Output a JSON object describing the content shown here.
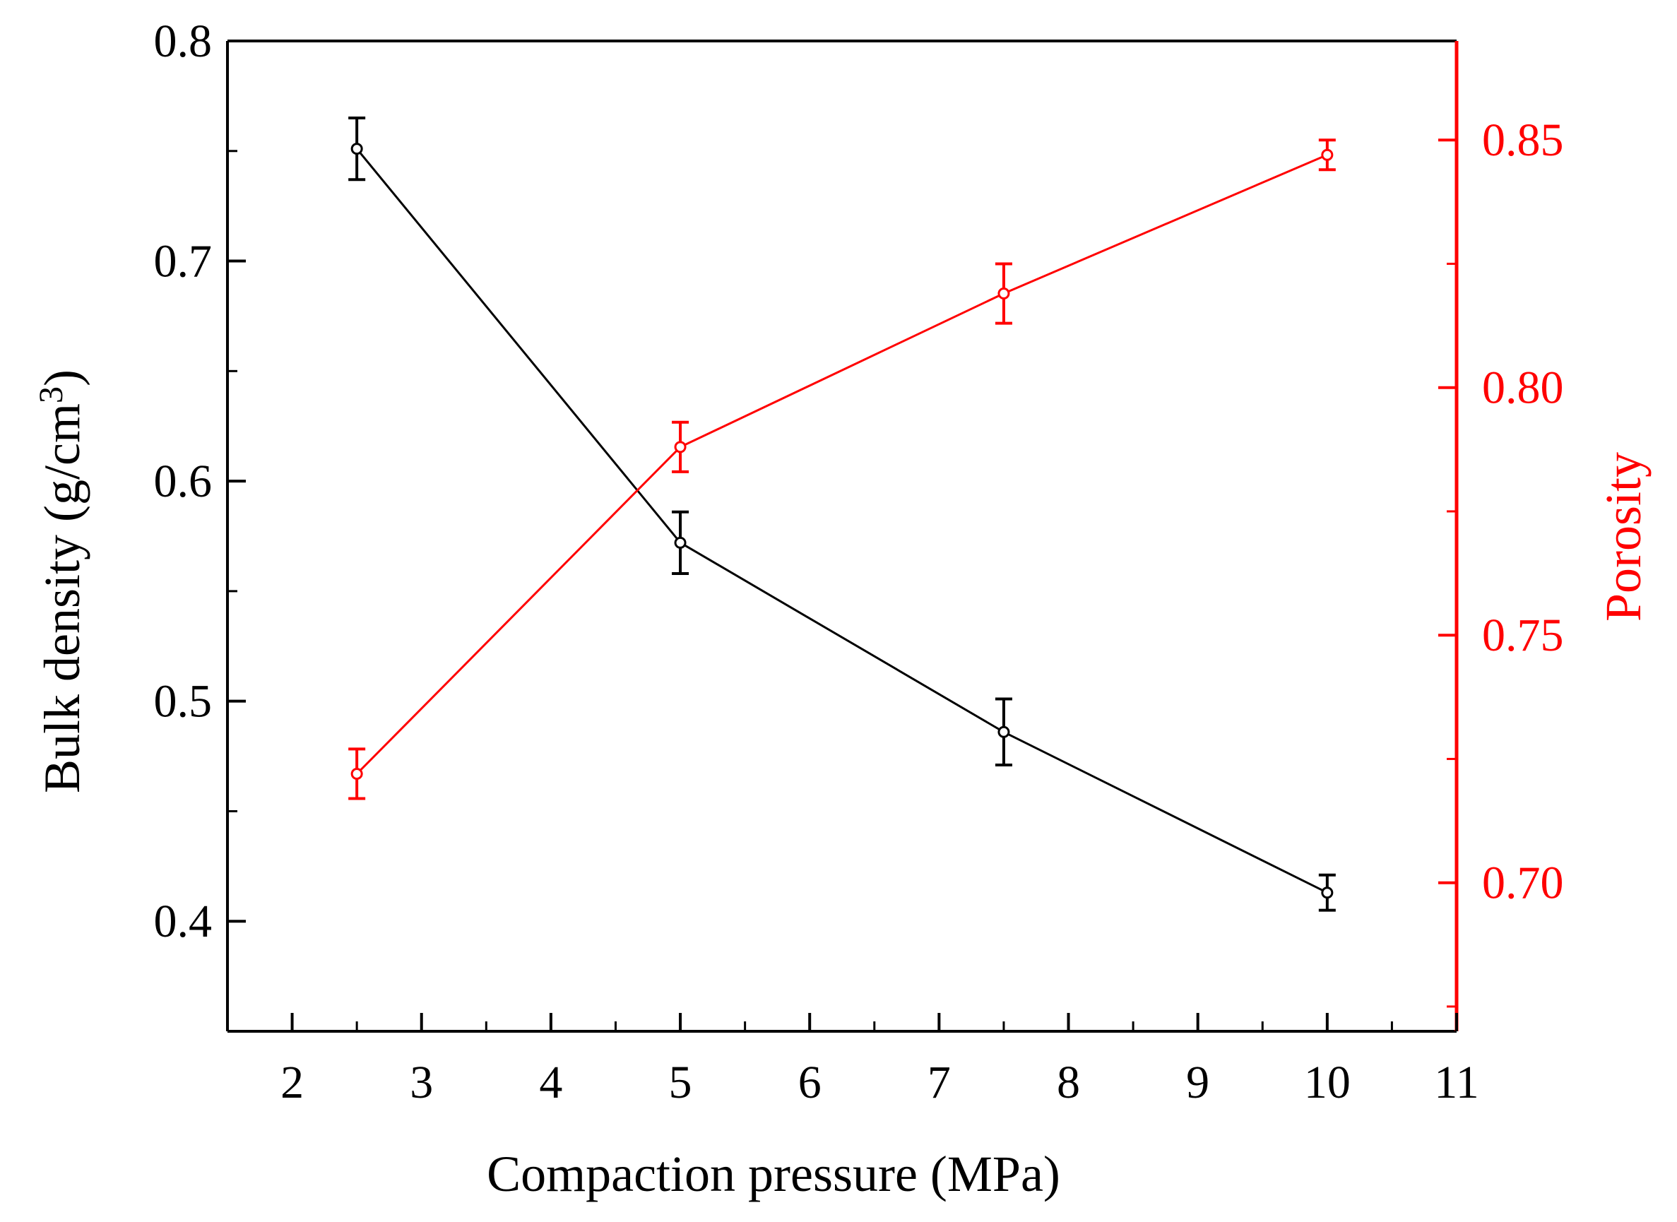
{
  "chart_data": {
    "type": "line",
    "title": "",
    "xlabel": "Compaction pressure (MPa)",
    "ylabel_left": {
      "text": "Bulk density (g/cm",
      "superscript": "3",
      "suffix": ")"
    },
    "ylabel_right": "Porosity",
    "xlim": [
      1.5,
      11
    ],
    "ylim_left": [
      0.35,
      0.8
    ],
    "ylim_right": [
      0.67,
      0.87
    ],
    "x_ticks": [
      2,
      3,
      4,
      5,
      6,
      7,
      8,
      9,
      10,
      11
    ],
    "x_tick_labels": [
      "2",
      "3",
      "4",
      "5",
      "6",
      "7",
      "8",
      "9",
      "10",
      "11"
    ],
    "y_left_ticks": [
      0.4,
      0.5,
      0.6,
      0.7,
      0.8
    ],
    "y_left_tick_labels": [
      "0.4",
      "0.5",
      "0.6",
      "0.7",
      "0.8"
    ],
    "y_right_ticks": [
      0.7,
      0.75,
      0.8,
      0.85
    ],
    "y_right_tick_labels": [
      "0.70",
      "0.75",
      "0.80",
      "0.85"
    ],
    "series": [
      {
        "name": "Bulk density",
        "axis": "left",
        "color": "#000000",
        "x": [
          2.5,
          5,
          7.5,
          10
        ],
        "values": [
          0.751,
          0.572,
          0.486,
          0.413
        ],
        "errors": [
          0.014,
          0.014,
          0.015,
          0.008
        ]
      },
      {
        "name": "Porosity",
        "axis": "right",
        "color": "#ff0000",
        "x": [
          2.5,
          5,
          7.5,
          10
        ],
        "values": [
          0.722,
          0.788,
          0.819,
          0.847
        ],
        "errors": [
          0.005,
          0.005,
          0.006,
          0.003
        ]
      }
    ]
  }
}
